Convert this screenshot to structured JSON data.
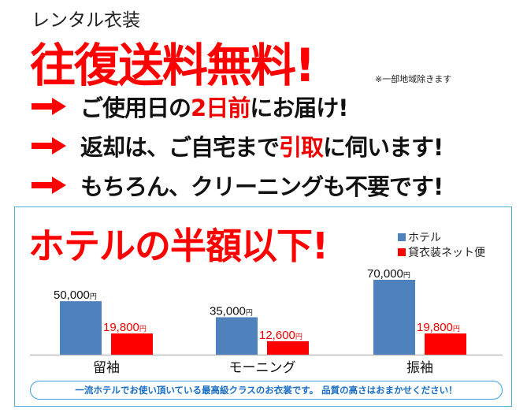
{
  "header": {
    "subtitle": "レンタル衣装",
    "headline": "往復送料無料!",
    "note": "※一部地域除きます"
  },
  "features": [
    {
      "parts": [
        {
          "text": "ご使用日の",
          "red": false
        },
        {
          "text": "2日前",
          "red": true
        },
        {
          "text": "にお届け!",
          "red": false
        }
      ]
    },
    {
      "parts": [
        {
          "text": "返却は、ご自宅まで",
          "red": false
        },
        {
          "text": "引取",
          "red": true
        },
        {
          "text": "に伺います!",
          "red": false
        }
      ]
    },
    {
      "parts": [
        {
          "text": "もちろん、クリーニングも不要です!",
          "red": false
        }
      ]
    }
  ],
  "icons": {
    "bullet": "arrow-right-icon"
  },
  "colors": {
    "accent": "#ff0000",
    "hotel": "#4f81bd",
    "rental": "#ff0000",
    "border": "#4fb0dd",
    "pill_text": "#1a6fc4"
  },
  "chart_data": {
    "type": "bar",
    "title": "ホテルの半額以下!",
    "categories": [
      "留袖",
      "モーニング",
      "振袖"
    ],
    "series": [
      {
        "name": "ホテル",
        "values": [
          50000,
          35000,
          70000
        ],
        "labels": [
          "50,000",
          "35,000",
          "70,000"
        ],
        "color": "#4f81bd"
      },
      {
        "name": "貸衣装ネット便",
        "values": [
          19800,
          12600,
          19800
        ],
        "labels": [
          "19,800",
          "12,600",
          "19,800"
        ],
        "color": "#ff0000"
      }
    ],
    "unit": "円",
    "ylim": [
      0,
      70000
    ],
    "grid": false,
    "legend": "top-right"
  },
  "footer": {
    "message": "一流ホテルでお使い頂いている最高級クラスのお衣裳です。 品質の高さはおまかせください！"
  }
}
